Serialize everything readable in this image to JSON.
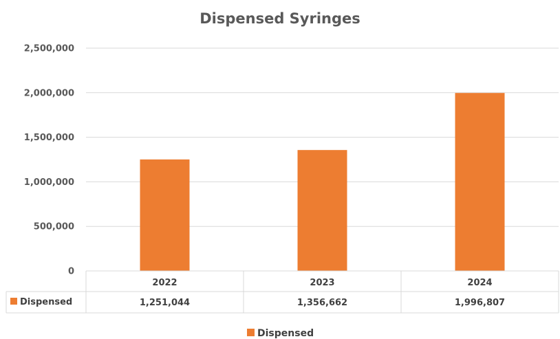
{
  "chart_data": {
    "type": "bar",
    "title": "Dispensed Syringes",
    "categories": [
      "2022",
      "2023",
      "2024"
    ],
    "series": [
      {
        "name": "Dispensed",
        "values": [
          1251044,
          1356662,
          1996807
        ],
        "color": "#ED7D31"
      }
    ],
    "value_labels": [
      "1,251,044",
      "1,356,662",
      "1,996,807"
    ],
    "y_ticks": [
      {
        "value": 0,
        "label": "0"
      },
      {
        "value": 500000,
        "label": "500,000"
      },
      {
        "value": 1000000,
        "label": "1,000,000"
      },
      {
        "value": 1500000,
        "label": "1,500,000"
      },
      {
        "value": 2000000,
        "label": "2,000,000"
      },
      {
        "value": 2500000,
        "label": "2,500,000"
      }
    ],
    "ylim": [
      0,
      2500000
    ],
    "grid": true,
    "legend_position": "bottom",
    "data_table": true
  }
}
